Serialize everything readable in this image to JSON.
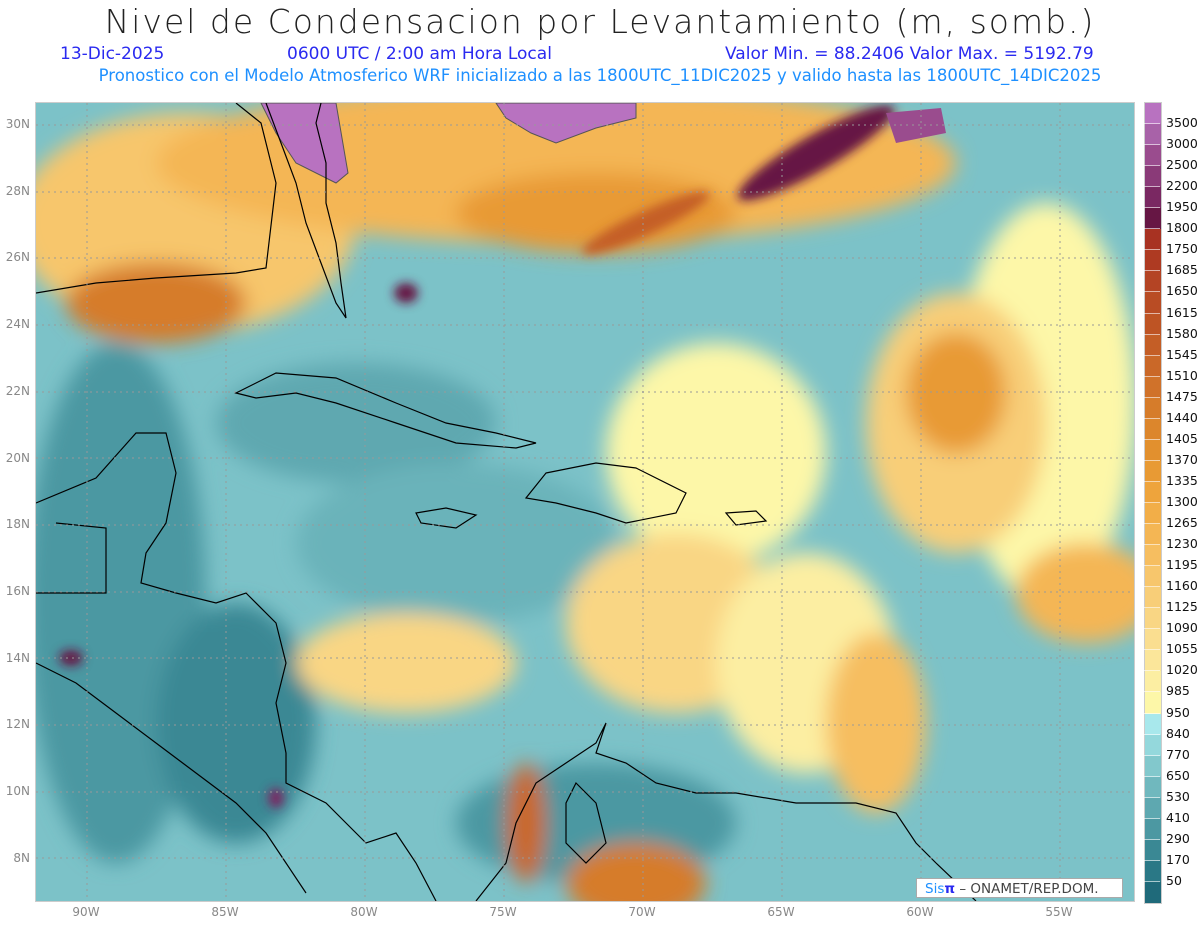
{
  "header": {
    "title": "Nivel de Condensacion por Levantamiento (m, somb.)",
    "date": "13-Dic-2025",
    "time": "0600 UTC / 2:00 am Hora Local",
    "min_max": "Valor Min. = 88.2406  Valor Max. = 5192.79",
    "model_info": "Pronostico con el Modelo Atmosferico WRF inicializado a las 1800UTC_11DIC2025 y valido hasta las  1800UTC_14DIC2025"
  },
  "map": {
    "lat_labels": [
      "30N",
      "28N",
      "26N",
      "24N",
      "22N",
      "20N",
      "18N",
      "16N",
      "14N",
      "12N",
      "10N",
      "8N"
    ],
    "lon_labels": [
      "90W",
      "85W",
      "80W",
      "75W",
      "70W",
      "65W",
      "60W",
      "55W"
    ]
  },
  "colorbar": {
    "labels": [
      "3500",
      "3000",
      "2500",
      "2200",
      "1950",
      "1800",
      "1750",
      "1685",
      "1650",
      "1615",
      "1580",
      "1545",
      "1510",
      "1475",
      "1440",
      "1405",
      "1370",
      "1335",
      "1300",
      "1265",
      "1230",
      "1195",
      "1160",
      "1125",
      "1090",
      "1055",
      "1020",
      "985",
      "950",
      "840",
      "770",
      "650",
      "530",
      "410",
      "290",
      "170",
      "50"
    ],
    "colors": [
      "#b872c0",
      "#a862a8",
      "#9a4c8e",
      "#8a3a78",
      "#7a2862",
      "#661644",
      "#a83222",
      "#ae3a22",
      "#b44424",
      "#b94c24",
      "#be5424",
      "#c45e26",
      "#ca6828",
      "#d0722a",
      "#d67c2a",
      "#dc862c",
      "#e2902e",
      "#e89a34",
      "#eea43c",
      "#f2ae48",
      "#f4b654",
      "#f6be60",
      "#f7c66c",
      "#f8ce78",
      "#f9d684",
      "#fade90",
      "#fbe69a",
      "#fceea2",
      "#fdf7a8",
      "#a8e8ec",
      "#94d8dc",
      "#82c8cc",
      "#70b8be",
      "#5ea8b0",
      "#4c98a2",
      "#3a8894",
      "#2a7886",
      "#1f6a7a"
    ]
  },
  "credit": {
    "brand": "Sis",
    "pi": "π",
    "text": "– ONAMET/REP.DOM."
  }
}
